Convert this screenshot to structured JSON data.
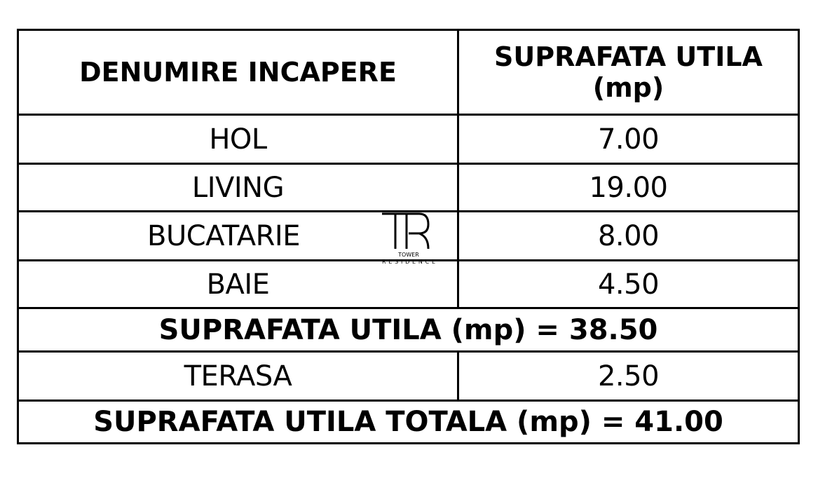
{
  "header": {
    "col1": "DENUMIRE INCAPERE",
    "col2_line1": "SUPRAFATA UTILA",
    "col2_line2": "(mp)"
  },
  "rows": [
    {
      "name": "HOL",
      "area": "7.00"
    },
    {
      "name": "LIVING",
      "area": "19.00"
    },
    {
      "name": "BUCATARIE",
      "area": "8.00"
    },
    {
      "name": "BAIE",
      "area": "4.50"
    }
  ],
  "subtotal": "SUPRAFATA UTILA (mp) = 38.50",
  "terrace": {
    "name": "TERASA",
    "area": "2.50"
  },
  "total": "SUPRAFATA UTILA TOTALA (mp) = 41.00",
  "logo": {
    "mark": "TR",
    "line1": "TOWER",
    "line2": "RESIDENCE"
  }
}
